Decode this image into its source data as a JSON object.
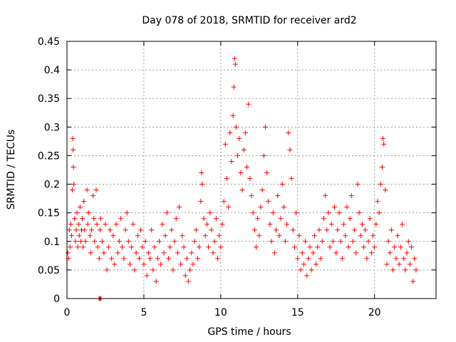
{
  "chart_data": {
    "type": "scatter",
    "title": "Day 078 of 2018, SRMTID for receiver ard2",
    "xlabel": "GPS time / hours",
    "ylabel": "SRMTID / TECUs",
    "xlim": [
      0,
      24.0
    ],
    "ylim": [
      0,
      0.45
    ],
    "x_ticks": [
      0,
      5,
      10,
      15,
      20
    ],
    "x_tick_labels": [
      "0",
      "5",
      "10",
      "15",
      "20"
    ],
    "y_ticks": [
      0,
      0.05,
      0.1,
      0.15,
      0.2,
      0.25,
      0.3,
      0.35,
      0.4,
      0.45
    ],
    "y_tick_labels": [
      "0",
      "0.05",
      "0.1",
      "0.15",
      "0.2",
      "0.25",
      "0.3",
      "0.35",
      "0.4",
      "0.45"
    ],
    "grid": true,
    "marker": "+",
    "series": [
      {
        "name": "SRMTID",
        "color": "#ff0000",
        "points": [
          [
            0.05,
            0.08
          ],
          [
            0.1,
            0.07
          ],
          [
            0.15,
            0.12
          ],
          [
            0.2,
            0.09
          ],
          [
            0.25,
            0.13
          ],
          [
            0.3,
            0.11
          ],
          [
            0.35,
            0.19
          ],
          [
            0.38,
            0.28
          ],
          [
            0.4,
            0.26
          ],
          [
            0.42,
            0.23
          ],
          [
            0.45,
            0.2
          ],
          [
            0.5,
            0.14
          ],
          [
            0.55,
            0.1
          ],
          [
            0.6,
            0.12
          ],
          [
            0.65,
            0.15
          ],
          [
            0.7,
            0.09
          ],
          [
            0.75,
            0.13
          ],
          [
            0.8,
            0.11
          ],
          [
            0.85,
            0.16
          ],
          [
            0.9,
            0.1
          ],
          [
            0.95,
            0.12
          ],
          [
            1.0,
            0.14
          ],
          [
            1.05,
            0.09
          ],
          [
            1.1,
            0.17
          ],
          [
            1.15,
            0.12
          ],
          [
            1.2,
            0.1
          ],
          [
            1.3,
            0.19
          ],
          [
            1.35,
            0.13
          ],
          [
            1.4,
            0.15
          ],
          [
            1.5,
            0.11
          ],
          [
            1.55,
            0.08
          ],
          [
            1.6,
            0.12
          ],
          [
            1.7,
            0.18
          ],
          [
            1.75,
            0.14
          ],
          [
            1.8,
            0.1
          ],
          [
            1.9,
            0.19
          ],
          [
            1.95,
            0.13
          ],
          [
            2.0,
            0.09
          ],
          [
            2.1,
            0.07
          ],
          [
            2.15,
            0.12
          ],
          [
            2.2,
            0.14
          ],
          [
            2.3,
            0.1
          ],
          [
            2.4,
            0.08
          ],
          [
            2.5,
            0.13
          ],
          [
            2.6,
            0.05
          ],
          [
            2.7,
            0.09
          ],
          [
            2.8,
            0.12
          ],
          [
            2.9,
            0.07
          ],
          [
            3.0,
            0.11
          ],
          [
            3.1,
            0.06
          ],
          [
            3.2,
            0.13
          ],
          [
            3.3,
            0.08
          ],
          [
            3.4,
            0.1
          ],
          [
            3.5,
            0.14
          ],
          [
            3.6,
            0.09
          ],
          [
            3.7,
            0.07
          ],
          [
            3.8,
            0.12
          ],
          [
            3.9,
            0.15
          ],
          [
            4.0,
            0.1
          ],
          [
            4.1,
            0.06
          ],
          [
            4.2,
            0.09
          ],
          [
            4.3,
            0.13
          ],
          [
            4.4,
            0.05
          ],
          [
            4.5,
            0.08
          ],
          [
            4.6,
            0.11
          ],
          [
            4.7,
            0.07
          ],
          [
            4.8,
            0.12
          ],
          [
            4.9,
            0.09
          ],
          [
            5.0,
            0.06
          ],
          [
            5.1,
            0.1
          ],
          [
            5.2,
            0.04
          ],
          [
            5.3,
            0.08
          ],
          [
            5.4,
            0.07
          ],
          [
            5.5,
            0.12
          ],
          [
            5.6,
            0.05
          ],
          [
            5.7,
            0.09
          ],
          [
            5.8,
            0.03
          ],
          [
            5.9,
            0.07
          ],
          [
            6.0,
            0.1
          ],
          [
            6.1,
            0.06
          ],
          [
            6.2,
            0.13
          ],
          [
            6.3,
            0.08
          ],
          [
            6.4,
            0.11
          ],
          [
            6.5,
            0.15
          ],
          [
            6.6,
            0.07
          ],
          [
            6.7,
            0.09
          ],
          [
            6.8,
            0.12
          ],
          [
            6.9,
            0.05
          ],
          [
            7.0,
            0.1
          ],
          [
            7.1,
            0.14
          ],
          [
            7.2,
            0.08
          ],
          [
            7.3,
            0.16
          ],
          [
            7.4,
            0.06
          ],
          [
            7.5,
            0.11
          ],
          [
            7.6,
            0.09
          ],
          [
            7.7,
            0.04
          ],
          [
            7.8,
            0.07
          ],
          [
            7.9,
            0.03
          ],
          [
            8.0,
            0.05
          ],
          [
            8.1,
            0.08
          ],
          [
            8.2,
            0.06
          ],
          [
            8.3,
            0.1
          ],
          [
            8.4,
            0.12
          ],
          [
            8.5,
            0.07
          ],
          [
            8.6,
            0.09
          ],
          [
            8.7,
            0.17
          ],
          [
            8.75,
            0.22
          ],
          [
            8.8,
            0.2
          ],
          [
            8.9,
            0.14
          ],
          [
            9.0,
            0.11
          ],
          [
            9.1,
            0.13
          ],
          [
            9.2,
            0.09
          ],
          [
            9.3,
            0.15
          ],
          [
            9.4,
            0.12
          ],
          [
            9.5,
            0.08
          ],
          [
            9.6,
            0.1
          ],
          [
            9.7,
            0.14
          ],
          [
            9.8,
            0.07
          ],
          [
            9.9,
            0.11
          ],
          [
            10.0,
            0.09
          ],
          [
            10.1,
            0.13
          ],
          [
            10.2,
            0.17
          ],
          [
            10.3,
            0.27
          ],
          [
            10.4,
            0.21
          ],
          [
            10.5,
            0.16
          ],
          [
            10.6,
            0.29
          ],
          [
            10.7,
            0.24
          ],
          [
            10.8,
            0.32
          ],
          [
            10.85,
            0.37
          ],
          [
            10.9,
            0.42
          ],
          [
            10.95,
            0.41
          ],
          [
            11.0,
            0.3
          ],
          [
            11.1,
            0.25
          ],
          [
            11.2,
            0.28
          ],
          [
            11.3,
            0.22
          ],
          [
            11.4,
            0.19
          ],
          [
            11.5,
            0.26
          ],
          [
            11.6,
            0.29
          ],
          [
            11.7,
            0.23
          ],
          [
            11.8,
            0.34
          ],
          [
            11.9,
            0.21
          ],
          [
            12.0,
            0.18
          ],
          [
            12.1,
            0.15
          ],
          [
            12.2,
            0.12
          ],
          [
            12.3,
            0.09
          ],
          [
            12.4,
            0.14
          ],
          [
            12.5,
            0.11
          ],
          [
            12.6,
            0.16
          ],
          [
            12.7,
            0.19
          ],
          [
            12.8,
            0.25
          ],
          [
            12.9,
            0.3
          ],
          [
            13.0,
            0.22
          ],
          [
            13.1,
            0.17
          ],
          [
            13.2,
            0.13
          ],
          [
            13.3,
            0.1
          ],
          [
            13.4,
            0.15
          ],
          [
            13.5,
            0.08
          ],
          [
            13.6,
            0.12
          ],
          [
            13.7,
            0.18
          ],
          [
            13.8,
            0.11
          ],
          [
            13.9,
            0.14
          ],
          [
            14.0,
            0.2
          ],
          [
            14.1,
            0.16
          ],
          [
            14.2,
            0.1
          ],
          [
            14.3,
            0.13
          ],
          [
            14.4,
            0.29
          ],
          [
            14.5,
            0.26
          ],
          [
            14.6,
            0.21
          ],
          [
            14.7,
            0.12
          ],
          [
            14.8,
            0.09
          ],
          [
            14.9,
            0.15
          ],
          [
            15.0,
            0.07
          ],
          [
            15.1,
            0.11
          ],
          [
            15.2,
            0.05
          ],
          [
            15.3,
            0.08
          ],
          [
            15.4,
            0.06
          ],
          [
            15.5,
            0.1
          ],
          [
            15.6,
            0.04
          ],
          [
            15.7,
            0.07
          ],
          [
            15.8,
            0.09
          ],
          [
            15.9,
            0.05
          ],
          [
            16.0,
            0.08
          ],
          [
            16.1,
            0.11
          ],
          [
            16.2,
            0.06
          ],
          [
            16.3,
            0.09
          ],
          [
            16.4,
            0.12
          ],
          [
            16.5,
            0.07
          ],
          [
            16.6,
            0.1
          ],
          [
            16.7,
            0.14
          ],
          [
            16.8,
            0.18
          ],
          [
            16.9,
            0.12
          ],
          [
            17.0,
            0.15
          ],
          [
            17.1,
            0.09
          ],
          [
            17.2,
            0.13
          ],
          [
            17.3,
            0.1
          ],
          [
            17.4,
            0.16
          ],
          [
            17.5,
            0.08
          ],
          [
            17.6,
            0.12
          ],
          [
            17.7,
            0.15
          ],
          [
            17.8,
            0.1
          ],
          [
            17.9,
            0.07
          ],
          [
            18.0,
            0.13
          ],
          [
            18.1,
            0.11
          ],
          [
            18.2,
            0.16
          ],
          [
            18.3,
            0.09
          ],
          [
            18.4,
            0.14
          ],
          [
            18.5,
            0.18
          ],
          [
            18.6,
            0.1
          ],
          [
            18.7,
            0.12
          ],
          [
            18.8,
            0.08
          ],
          [
            18.9,
            0.2
          ],
          [
            19.0,
            0.15
          ],
          [
            19.1,
            0.11
          ],
          [
            19.2,
            0.13
          ],
          [
            19.3,
            0.09
          ],
          [
            19.4,
            0.12
          ],
          [
            19.5,
            0.07
          ],
          [
            19.6,
            0.1
          ],
          [
            19.7,
            0.14
          ],
          [
            19.8,
            0.08
          ],
          [
            19.9,
            0.11
          ],
          [
            20.0,
            0.09
          ],
          [
            20.1,
            0.13
          ],
          [
            20.2,
            0.17
          ],
          [
            20.3,
            0.15
          ],
          [
            20.4,
            0.2
          ],
          [
            20.5,
            0.23
          ],
          [
            20.55,
            0.28
          ],
          [
            20.6,
            0.27
          ],
          [
            20.7,
            0.19
          ],
          [
            20.8,
            0.06
          ],
          [
            20.9,
            0.1
          ],
          [
            21.0,
            0.08
          ],
          [
            21.1,
            0.12
          ],
          [
            21.2,
            0.05
          ],
          [
            21.3,
            0.09
          ],
          [
            21.4,
            0.07
          ],
          [
            21.5,
            0.11
          ],
          [
            21.6,
            0.06
          ],
          [
            21.7,
            0.09
          ],
          [
            21.8,
            0.13
          ],
          [
            21.9,
            0.07
          ],
          [
            22.0,
            0.05
          ],
          [
            22.1,
            0.08
          ],
          [
            22.2,
            0.1
          ],
          [
            22.3,
            0.06
          ],
          [
            22.4,
            0.09
          ],
          [
            22.5,
            0.03
          ],
          [
            22.6,
            0.07
          ],
          [
            22.7,
            0.05
          ]
        ]
      }
    ],
    "annotations": [
      {
        "x": 2.15,
        "y": 0.0,
        "marker": "square"
      }
    ]
  }
}
